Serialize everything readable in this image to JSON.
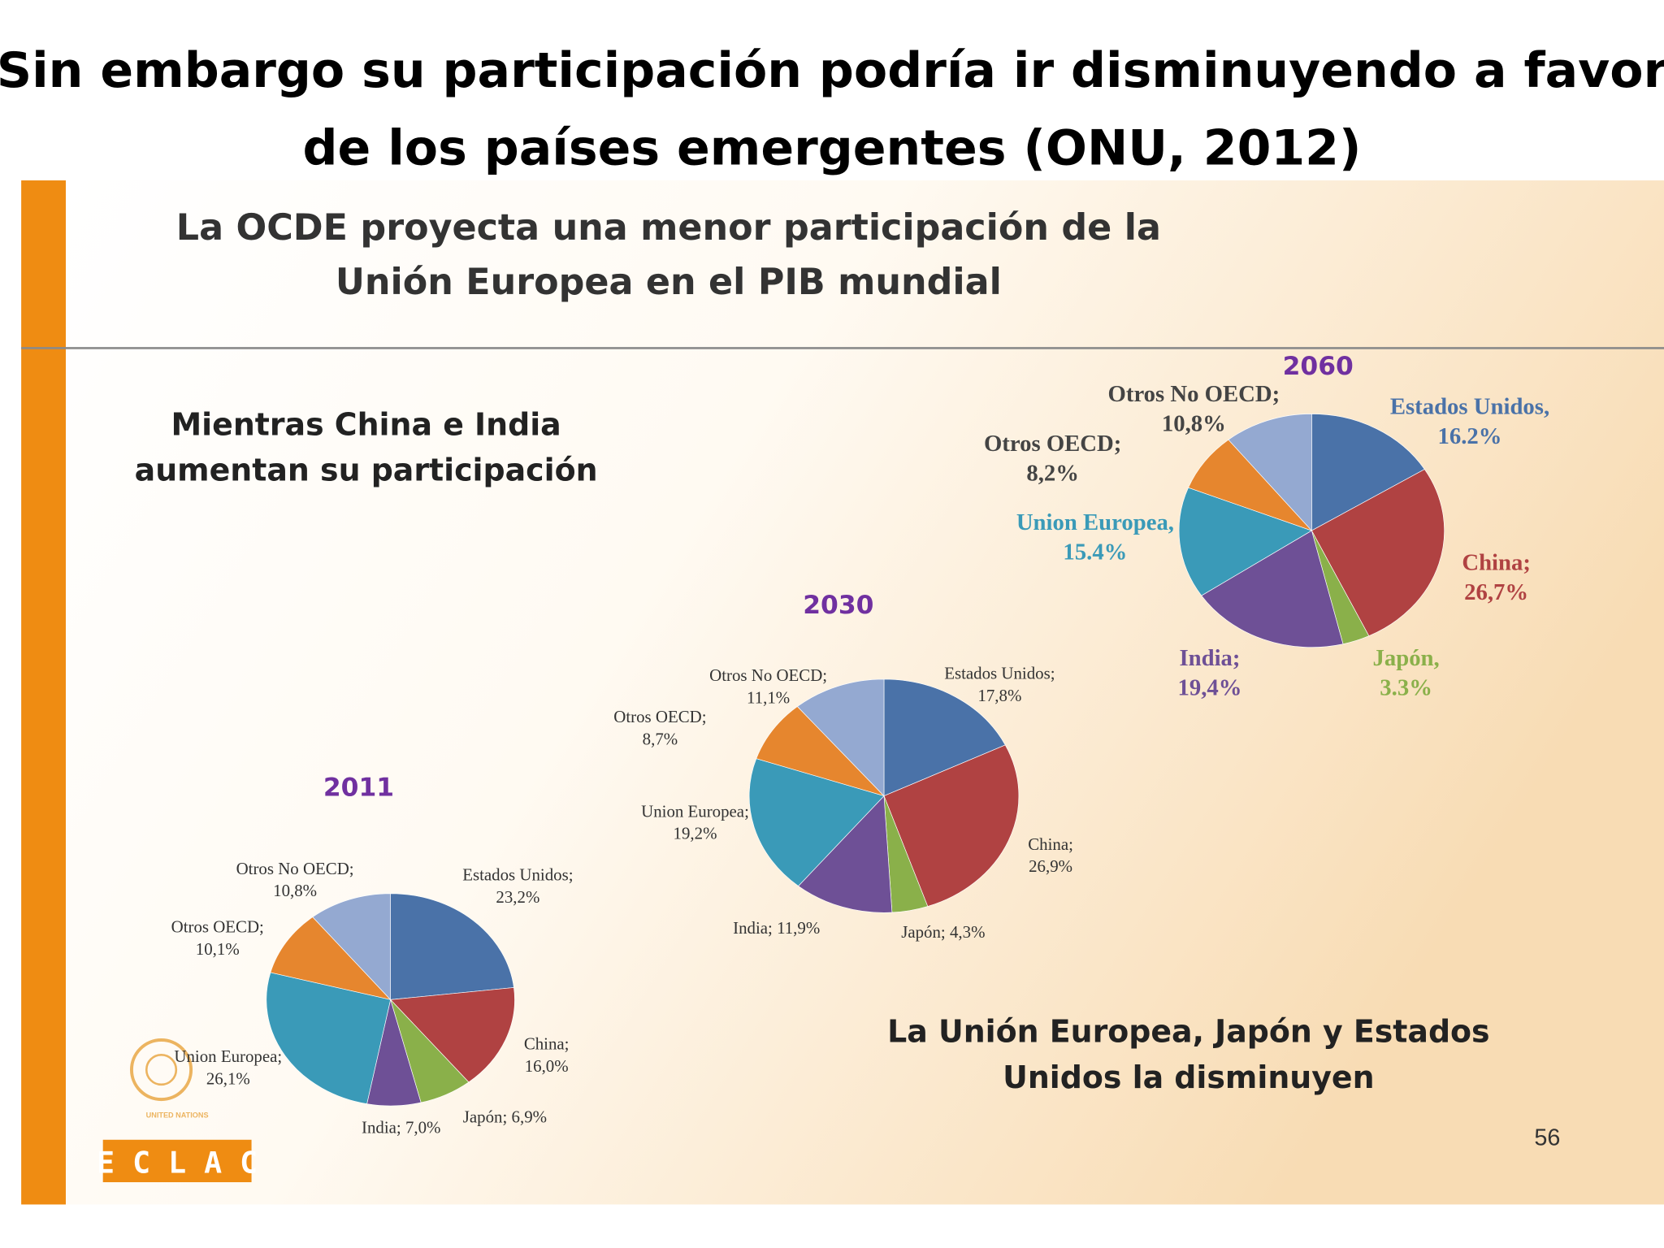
{
  "title": [
    "Sin embargo su participación podría ir disminuyendo a favor",
    "de los países emergentes (ONU, 2012)"
  ],
  "slide": {
    "heading": [
      "La OCDE proyecta una menor participación de la",
      "Unión Europea en el PIB mundial"
    ],
    "left_note": [
      "Mientras China e India",
      "aumentan su participación"
    ],
    "right_note": [
      "La Unión Europea, Japón y Estados",
      "Unidos la disminuyen"
    ],
    "page": "56",
    "logo_text": "UNITED NATIONS",
    "logo_box": "E C L A C"
  },
  "chart_data": [
    {
      "type": "pie",
      "title": "2011",
      "categories": [
        "Estados Unidos;",
        "China;",
        "Japón;",
        "India;",
        "Union Europea;",
        "Otros OECD;",
        "Otros No OECD;"
      ],
      "values": [
        23.2,
        16.0,
        6.9,
        7.0,
        26.1,
        10.1,
        10.8
      ],
      "value_labels": [
        "23,2%",
        "16,0%",
        "6,9%",
        "7,0%",
        "26,1%",
        "10,1%",
        "10,8%"
      ],
      "colors": [
        "#4a72a8",
        "#b04242",
        "#8ab04a",
        "#6e5096",
        "#3a9ab8",
        "#e6862e",
        "#94a9d1"
      ]
    },
    {
      "type": "pie",
      "title": "2030",
      "categories": [
        "Estados Unidos;",
        "China;",
        "Japón;",
        "India;",
        "Union Europea;",
        "Otros OECD;",
        "Otros No OECD;"
      ],
      "values": [
        17.8,
        26.9,
        4.3,
        11.9,
        19.2,
        8.7,
        11.1
      ],
      "value_labels": [
        "17,8%",
        "26,9%",
        "4,3%",
        "11,9%",
        "19,2%",
        "8,7%",
        "11,1%"
      ],
      "colors": [
        "#4a72a8",
        "#b04242",
        "#8ab04a",
        "#6e5096",
        "#3a9ab8",
        "#e6862e",
        "#94a9d1"
      ]
    },
    {
      "type": "pie",
      "title": "2060",
      "categories": [
        "Estados Unidos,",
        "China;",
        "Japón,",
        "India;",
        "Union Europea,",
        "Otros OECD;",
        "Otros No OECD;"
      ],
      "values": [
        16.2,
        26.7,
        3.3,
        19.4,
        15.4,
        8.2,
        10.8
      ],
      "value_labels": [
        "16.2%",
        "26,7%",
        "3.3%",
        "19,4%",
        "15.4%",
        "8,2%",
        "10,8%"
      ],
      "colors": [
        "#4a72a8",
        "#b04242",
        "#8ab04a",
        "#6e5096",
        "#3a9ab8",
        "#e6862e",
        "#94a9d1"
      ]
    }
  ]
}
